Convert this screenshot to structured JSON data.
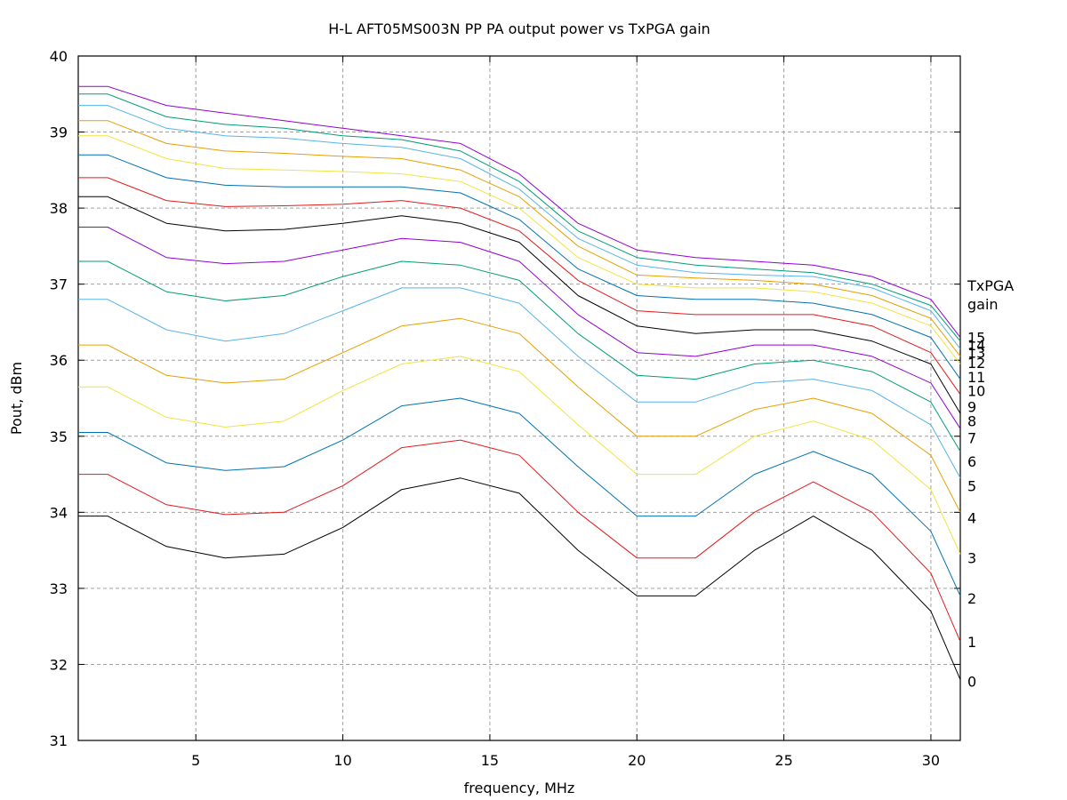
{
  "chart_data": {
    "type": "line",
    "title": "H-L AFT05MS003N PP PA output power vs TxPGA gain",
    "xlabel": "frequency, MHz",
    "ylabel": "Pout, dBm",
    "xlim": [
      1,
      31
    ],
    "ylim": [
      31,
      40
    ],
    "xticks": [
      5,
      10,
      15,
      20,
      25,
      30
    ],
    "yticks": [
      31,
      32,
      33,
      34,
      35,
      36,
      37,
      38,
      39,
      40
    ],
    "grid": true,
    "legend_title": [
      "TxPGA",
      "gain"
    ],
    "legend_placement": "right-edge labels",
    "x": [
      1,
      2,
      4,
      6,
      8,
      10,
      12,
      14,
      16,
      18,
      20,
      22,
      24,
      26,
      28,
      30,
      31
    ],
    "series": [
      {
        "name": "0",
        "color": "#000000",
        "values": [
          33.95,
          33.95,
          33.55,
          33.4,
          33.45,
          33.8,
          34.3,
          34.45,
          34.25,
          33.5,
          32.9,
          32.9,
          33.5,
          33.95,
          33.5,
          32.7,
          31.8
        ]
      },
      {
        "name": "1",
        "color": "#e41a1c",
        "values": [
          34.5,
          34.5,
          34.1,
          33.97,
          34.0,
          34.35,
          34.85,
          34.95,
          34.75,
          34.0,
          33.4,
          33.4,
          34.0,
          34.4,
          34.0,
          33.2,
          32.3
        ]
      },
      {
        "name": "2",
        "color": "#0072b2",
        "values": [
          35.05,
          35.05,
          34.65,
          34.55,
          34.6,
          34.95,
          35.4,
          35.5,
          35.3,
          34.6,
          33.95,
          33.95,
          34.5,
          34.8,
          34.5,
          33.75,
          32.9
        ]
      },
      {
        "name": "3",
        "color": "#f0e442",
        "values": [
          35.65,
          35.65,
          35.25,
          35.12,
          35.2,
          35.6,
          35.95,
          36.05,
          35.85,
          35.15,
          34.5,
          34.5,
          35.0,
          35.2,
          34.95,
          34.3,
          33.45
        ]
      },
      {
        "name": "4",
        "color": "#e69f00",
        "values": [
          36.2,
          36.2,
          35.8,
          35.7,
          35.75,
          36.1,
          36.45,
          36.55,
          36.35,
          35.65,
          35.0,
          35.0,
          35.35,
          35.5,
          35.3,
          34.75,
          34.0
        ]
      },
      {
        "name": "5",
        "color": "#56b4e9",
        "values": [
          36.8,
          36.8,
          36.4,
          36.25,
          36.35,
          36.65,
          36.95,
          36.95,
          36.75,
          36.05,
          35.45,
          35.45,
          35.7,
          35.75,
          35.6,
          35.15,
          34.45
        ]
      },
      {
        "name": "6",
        "color": "#009e73",
        "values": [
          37.3,
          37.3,
          36.9,
          36.78,
          36.85,
          37.1,
          37.3,
          37.25,
          37.05,
          36.35,
          35.8,
          35.75,
          35.95,
          36.0,
          35.85,
          35.45,
          34.8
        ]
      },
      {
        "name": "7",
        "color": "#9400d3",
        "values": [
          37.75,
          37.75,
          37.35,
          37.27,
          37.3,
          37.45,
          37.6,
          37.55,
          37.3,
          36.6,
          36.1,
          36.05,
          36.2,
          36.2,
          36.05,
          35.7,
          35.1
        ]
      },
      {
        "name": "8",
        "color": "#000000",
        "values": [
          38.15,
          38.15,
          37.8,
          37.7,
          37.72,
          37.8,
          37.9,
          37.8,
          37.55,
          36.85,
          36.45,
          36.35,
          36.4,
          36.4,
          36.25,
          35.95,
          35.3
        ]
      },
      {
        "name": "9",
        "color": "#e41a1c",
        "values": [
          38.4,
          38.4,
          38.1,
          38.02,
          38.03,
          38.05,
          38.1,
          38.0,
          37.7,
          37.05,
          36.65,
          36.6,
          36.6,
          36.6,
          36.45,
          36.1,
          35.55
        ]
      },
      {
        "name": "10",
        "color": "#0072b2",
        "values": [
          38.7,
          38.7,
          38.4,
          38.3,
          38.28,
          38.28,
          38.28,
          38.2,
          37.85,
          37.2,
          36.85,
          36.8,
          36.8,
          36.75,
          36.6,
          36.3,
          35.75
        ]
      },
      {
        "name": "11",
        "color": "#f0e442",
        "values": [
          38.95,
          38.95,
          38.65,
          38.52,
          38.5,
          38.48,
          38.45,
          38.35,
          38.0,
          37.35,
          37.0,
          36.95,
          36.95,
          36.9,
          36.75,
          36.45,
          35.95
        ]
      },
      {
        "name": "12",
        "color": "#e69f00",
        "values": [
          39.15,
          39.15,
          38.85,
          38.75,
          38.72,
          38.68,
          38.65,
          38.5,
          38.15,
          37.5,
          37.12,
          37.08,
          37.05,
          37.0,
          36.85,
          36.55,
          36.05
        ]
      },
      {
        "name": "13",
        "color": "#56b4e9",
        "values": [
          39.35,
          39.35,
          39.05,
          38.95,
          38.92,
          38.85,
          38.8,
          38.65,
          38.25,
          37.6,
          37.25,
          37.15,
          37.12,
          37.1,
          36.95,
          36.65,
          36.15
        ]
      },
      {
        "name": "14",
        "color": "#009e73",
        "values": [
          39.5,
          39.5,
          39.2,
          39.1,
          39.05,
          38.95,
          38.9,
          38.75,
          38.35,
          37.7,
          37.35,
          37.25,
          37.2,
          37.15,
          37.0,
          36.72,
          36.25
        ]
      },
      {
        "name": "15",
        "color": "#9400d3",
        "values": [
          39.6,
          39.6,
          39.35,
          39.25,
          39.15,
          39.05,
          38.95,
          38.85,
          38.45,
          37.8,
          37.45,
          37.35,
          37.3,
          37.25,
          37.1,
          36.8,
          36.3
        ]
      }
    ],
    "end_labels": [
      {
        "text": "15",
        "y": 36.3
      },
      {
        "text": "14",
        "y": 36.2
      },
      {
        "text": "13",
        "y": 36.1
      },
      {
        "text": "12",
        "y": 35.97
      },
      {
        "text": "11",
        "y": 35.78
      },
      {
        "text": "10",
        "y": 35.6
      },
      {
        "text": "9",
        "y": 35.39
      },
      {
        "text": "8",
        "y": 35.2
      },
      {
        "text": "7",
        "y": 34.98
      },
      {
        "text": "6",
        "y": 34.67
      },
      {
        "text": "5",
        "y": 34.35
      },
      {
        "text": "4",
        "y": 33.93
      },
      {
        "text": "3",
        "y": 33.4
      },
      {
        "text": "2",
        "y": 32.87
      },
      {
        "text": "1",
        "y": 32.3
      },
      {
        "text": "0",
        "y": 31.78
      }
    ]
  }
}
